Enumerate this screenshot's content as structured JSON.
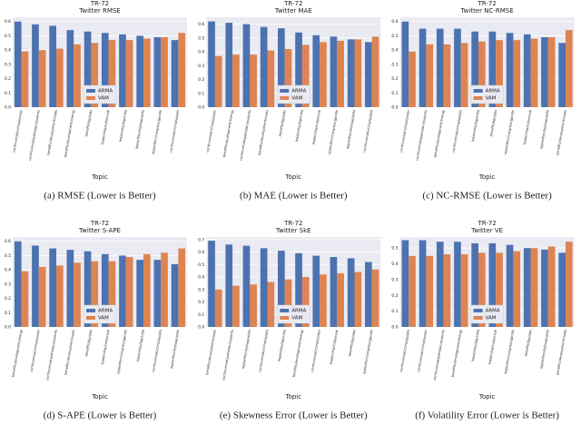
{
  "chart_data": [
    {
      "type": "bar",
      "title": "TR-72",
      "subtitle": "Twitter RMSE",
      "x_label": "Topic",
      "caption": "(a) RMSE (Lower is Better)",
      "categories": [
        "controversial/china/border",
        "controversial/pakistan/students",
        "benefits/development/roads",
        "benefits/development/energy",
        "benefits/bjp/jobs",
        "leadership/india/modi",
        "leadership/bjp/india",
        "opposition/kejriwal/delhi",
        "opposition/congress/gandhi",
        "controversial/china/ladakh"
      ],
      "series": [
        {
          "name": "ARMA",
          "color": "#4c72b0",
          "values": [
            0.6,
            0.58,
            0.57,
            0.54,
            0.53,
            0.52,
            0.51,
            0.5,
            0.49,
            0.47
          ]
        },
        {
          "name": "VAM",
          "color": "#dd8452",
          "values": [
            0.39,
            0.4,
            0.41,
            0.44,
            0.45,
            0.47,
            0.47,
            0.48,
            0.49,
            0.52
          ]
        }
      ],
      "ylim": [
        0,
        0.63
      ],
      "yticks": [
        {
          "value": 0,
          "label": "0.0"
        },
        0.1,
        0.2,
        0.3,
        0.4,
        0.5,
        0.6
      ],
      "grid": true,
      "legend": "lower center"
    },
    {
      "type": "bar",
      "title": "TR-72",
      "subtitle": "Twitter MAE",
      "x_label": "Topic",
      "caption": "(b) MAE (Lower is Better)",
      "categories": [
        "controversial/china/border",
        "benefits/development/energy",
        "controversial/pakistan/students",
        "benefits/development/roads",
        "benefits/bjp/jobs",
        "leadership/bjp/india",
        "leadership/india/modi",
        "opposition/congress/gandhi",
        "opposition/kejriwal/delhi",
        "controversial/china/ladakh"
      ],
      "series": [
        {
          "name": "ARMA",
          "color": "#4c72b0",
          "values": [
            0.62,
            0.61,
            0.6,
            0.58,
            0.57,
            0.54,
            0.52,
            0.51,
            0.49,
            0.47
          ]
        },
        {
          "name": "VAM",
          "color": "#dd8452",
          "values": [
            0.37,
            0.38,
            0.38,
            0.41,
            0.42,
            0.45,
            0.47,
            0.48,
            0.49,
            0.51
          ]
        }
      ],
      "ylim": [
        0,
        0.65
      ],
      "yticks": [
        {
          "value": 0,
          "label": "0.0"
        },
        0.1,
        0.2,
        0.3,
        0.4,
        0.5,
        0.6
      ],
      "grid": true,
      "legend": "lower center"
    },
    {
      "type": "bar",
      "title": "TR-72",
      "subtitle": "Twitter NC-RMSE",
      "x_label": "Topic",
      "caption": "(c) NC-RMSE (Lower is Better)",
      "categories": [
        "controversial/china/border",
        "controversial/pakistan/students",
        "benefits/development/energy",
        "controversial/china/ladakh",
        "leadership/bjp/india",
        "benefits/bjp/jobs",
        "opposition/congress/gandhi",
        "leadership/india/modi",
        "opposition/kejriwal/delhi",
        "benefits/development/roads"
      ],
      "series": [
        {
          "name": "ARMA",
          "color": "#4c72b0",
          "values": [
            0.6,
            0.55,
            0.55,
            0.55,
            0.53,
            0.53,
            0.52,
            0.51,
            0.49,
            0.45
          ]
        },
        {
          "name": "VAM",
          "color": "#dd8452",
          "values": [
            0.39,
            0.44,
            0.44,
            0.45,
            0.46,
            0.47,
            0.47,
            0.48,
            0.49,
            0.54
          ]
        }
      ],
      "ylim": [
        0,
        0.63
      ],
      "yticks": [
        {
          "value": 0,
          "label": "0.0"
        },
        0.1,
        0.2,
        0.3,
        0.4,
        0.5,
        0.6
      ],
      "grid": true,
      "legend": "lower center"
    },
    {
      "type": "bar",
      "title": "TR-72",
      "subtitle": "Twitter S-APE",
      "x_label": "Topic",
      "caption": "(d) S-APE (Lower is Better)",
      "categories": [
        "benefits/development/energy",
        "controversial/china/border",
        "controversial/pakistan/students",
        "benefits/development/roads",
        "benefits/bjp/jobs",
        "leadership/india/modi",
        "opposition/congress/gandhi",
        "leadership/bjp/india",
        "controversial/china/ladakh",
        "opposition/kejriwal/delhi"
      ],
      "series": [
        {
          "name": "ARMA",
          "color": "#4c72b0",
          "values": [
            0.6,
            0.57,
            0.55,
            0.54,
            0.53,
            0.51,
            0.5,
            0.47,
            0.47,
            0.44
          ]
        },
        {
          "name": "VAM",
          "color": "#dd8452",
          "values": [
            0.39,
            0.42,
            0.43,
            0.45,
            0.46,
            0.46,
            0.49,
            0.51,
            0.52,
            0.55
          ]
        }
      ],
      "ylim": [
        0,
        0.63
      ],
      "yticks": [
        {
          "value": 0,
          "label": "0.0"
        },
        0.1,
        0.2,
        0.3,
        0.4,
        0.5,
        0.6
      ],
      "grid": true,
      "legend": "lower center"
    },
    {
      "type": "bar",
      "title": "TR-72",
      "subtitle": "Twitter SkE",
      "x_label": "Topic",
      "caption": "(e) Skewness Error (Lower is Better)",
      "categories": [
        "benefits/development/roads",
        "controversial/pakistan/students",
        "opposition/kejriwal/delhi",
        "controversial/china/ladakh",
        "leadership/bjp/india",
        "benefits/development/energy",
        "controversial/china/border",
        "leadership/india/modi",
        "benefits/bjp/jobs",
        "opposition/congress/gandhi"
      ],
      "series": [
        {
          "name": "ARMA",
          "color": "#4c72b0",
          "values": [
            0.69,
            0.66,
            0.65,
            0.63,
            0.61,
            0.59,
            0.57,
            0.56,
            0.55,
            0.52
          ]
        },
        {
          "name": "VAM",
          "color": "#dd8452",
          "values": [
            0.3,
            0.33,
            0.34,
            0.36,
            0.38,
            0.4,
            0.42,
            0.43,
            0.44,
            0.46
          ]
        }
      ],
      "ylim": [
        0,
        0.72
      ],
      "yticks": [
        {
          "value": 0,
          "label": "0.0"
        },
        0.1,
        0.2,
        0.3,
        0.4,
        0.5,
        0.6,
        0.7
      ],
      "grid": true,
      "legend": "lower center"
    },
    {
      "type": "bar",
      "title": "TR-72",
      "subtitle": "Twitter VE",
      "x_label": "Topic",
      "caption": "(f) Volatility Error (Lower is Better)",
      "categories": [
        "controversial/china/ladakh",
        "controversial/china/border",
        "controversial/pakistan/students",
        "benefits/development/energy",
        "leadership/bjp/india",
        "leadership/india/modi",
        "opposition/congress/gandhi",
        "benefits/bjp/jobs",
        "opposition/kejriwal/delhi",
        "benefits/development/roads"
      ],
      "series": [
        {
          "name": "ARMA",
          "color": "#4c72b0",
          "values": [
            0.55,
            0.55,
            0.54,
            0.54,
            0.53,
            0.53,
            0.52,
            0.5,
            0.49,
            0.47
          ]
        },
        {
          "name": "VAM",
          "color": "#dd8452",
          "values": [
            0.45,
            0.45,
            0.46,
            0.46,
            0.47,
            0.47,
            0.48,
            0.5,
            0.51,
            0.54
          ]
        }
      ],
      "ylim": [
        0,
        0.57
      ],
      "yticks": [
        {
          "value": 0,
          "label": "0.0"
        },
        0.1,
        0.2,
        0.3,
        0.4,
        0.5
      ],
      "grid": true,
      "legend": "lower center"
    }
  ]
}
